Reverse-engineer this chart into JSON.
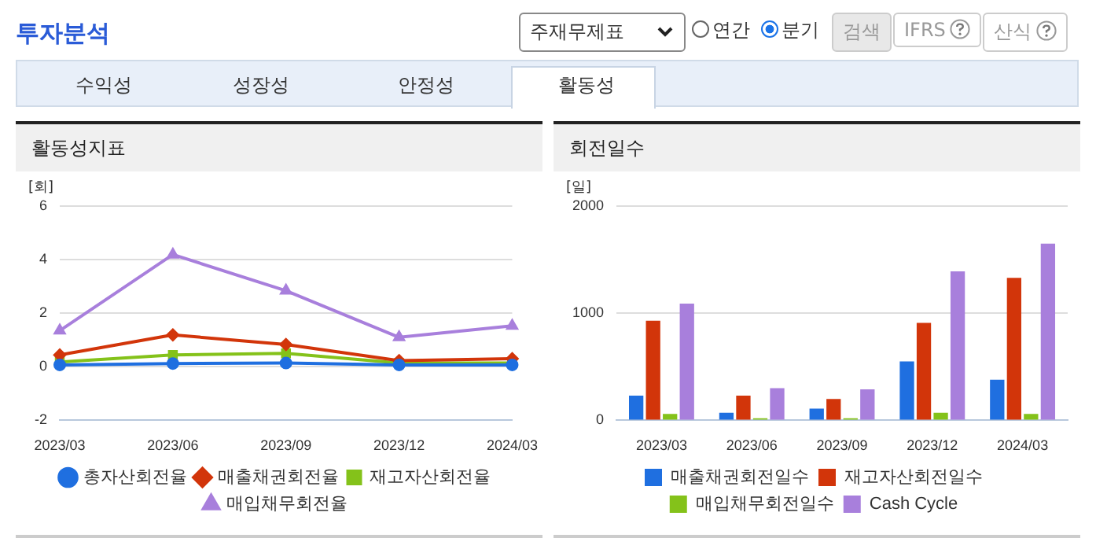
{
  "chart_data": [
    {
      "type": "line",
      "title": "활동성지표",
      "ylabel": "[회]",
      "categories": [
        "2023/03",
        "2023/06",
        "2023/09",
        "2023/12",
        "2024/03"
      ],
      "ylim": [
        -2,
        6
      ],
      "yticks": [
        -2,
        0,
        2,
        4,
        6
      ],
      "grid": "y",
      "legend": "bottom",
      "annotations": [
        "투자분석",
        "주재무제표",
        "연간",
        "분기",
        "검색",
        "IFRS",
        "산식",
        "수익성",
        "성장성",
        "안정성",
        "활동성"
      ],
      "series": [
        {
          "name": "총자산회전율",
          "color": "#1f6fe0",
          "marker": "circle",
          "values": [
            0.07,
            0.12,
            0.14,
            0.07,
            0.07
          ]
        },
        {
          "name": "매출채권회전율",
          "color": "#d2350a",
          "marker": "diamond",
          "values": [
            0.44,
            1.19,
            0.83,
            0.23,
            0.3
          ]
        },
        {
          "name": "재고자산회전율",
          "color": "#84c21a",
          "marker": "square",
          "values": [
            0.18,
            0.44,
            0.5,
            0.14,
            0.14
          ]
        },
        {
          "name": "매입채무회전율",
          "color": "#a87fdc",
          "marker": "triangle",
          "values": [
            1.35,
            4.19,
            2.84,
            1.1,
            1.53
          ]
        }
      ]
    },
    {
      "type": "bar",
      "title": "회전일수",
      "ylabel": "[일]",
      "categories": [
        "2023/03",
        "2023/06",
        "2023/09",
        "2023/12",
        "2024/03"
      ],
      "ylim": [
        0,
        2000
      ],
      "yticks": [
        0,
        1000,
        2000
      ],
      "grid": "y",
      "legend": "bottom",
      "series": [
        {
          "name": "매출채권회전일수",
          "color": "#1f6fe0",
          "values": [
            230,
            70,
            110,
            550,
            380
          ]
        },
        {
          "name": "재고자산회전일수",
          "color": "#d2350a",
          "values": [
            930,
            230,
            200,
            910,
            1330
          ]
        },
        {
          "name": "매입채무회전일수",
          "color": "#84c21a",
          "values": [
            60,
            20,
            20,
            70,
            60
          ]
        },
        {
          "name": "Cash Cycle",
          "color": "#a87fdc",
          "values": [
            1090,
            300,
            290,
            1390,
            1650
          ]
        }
      ]
    }
  ]
}
